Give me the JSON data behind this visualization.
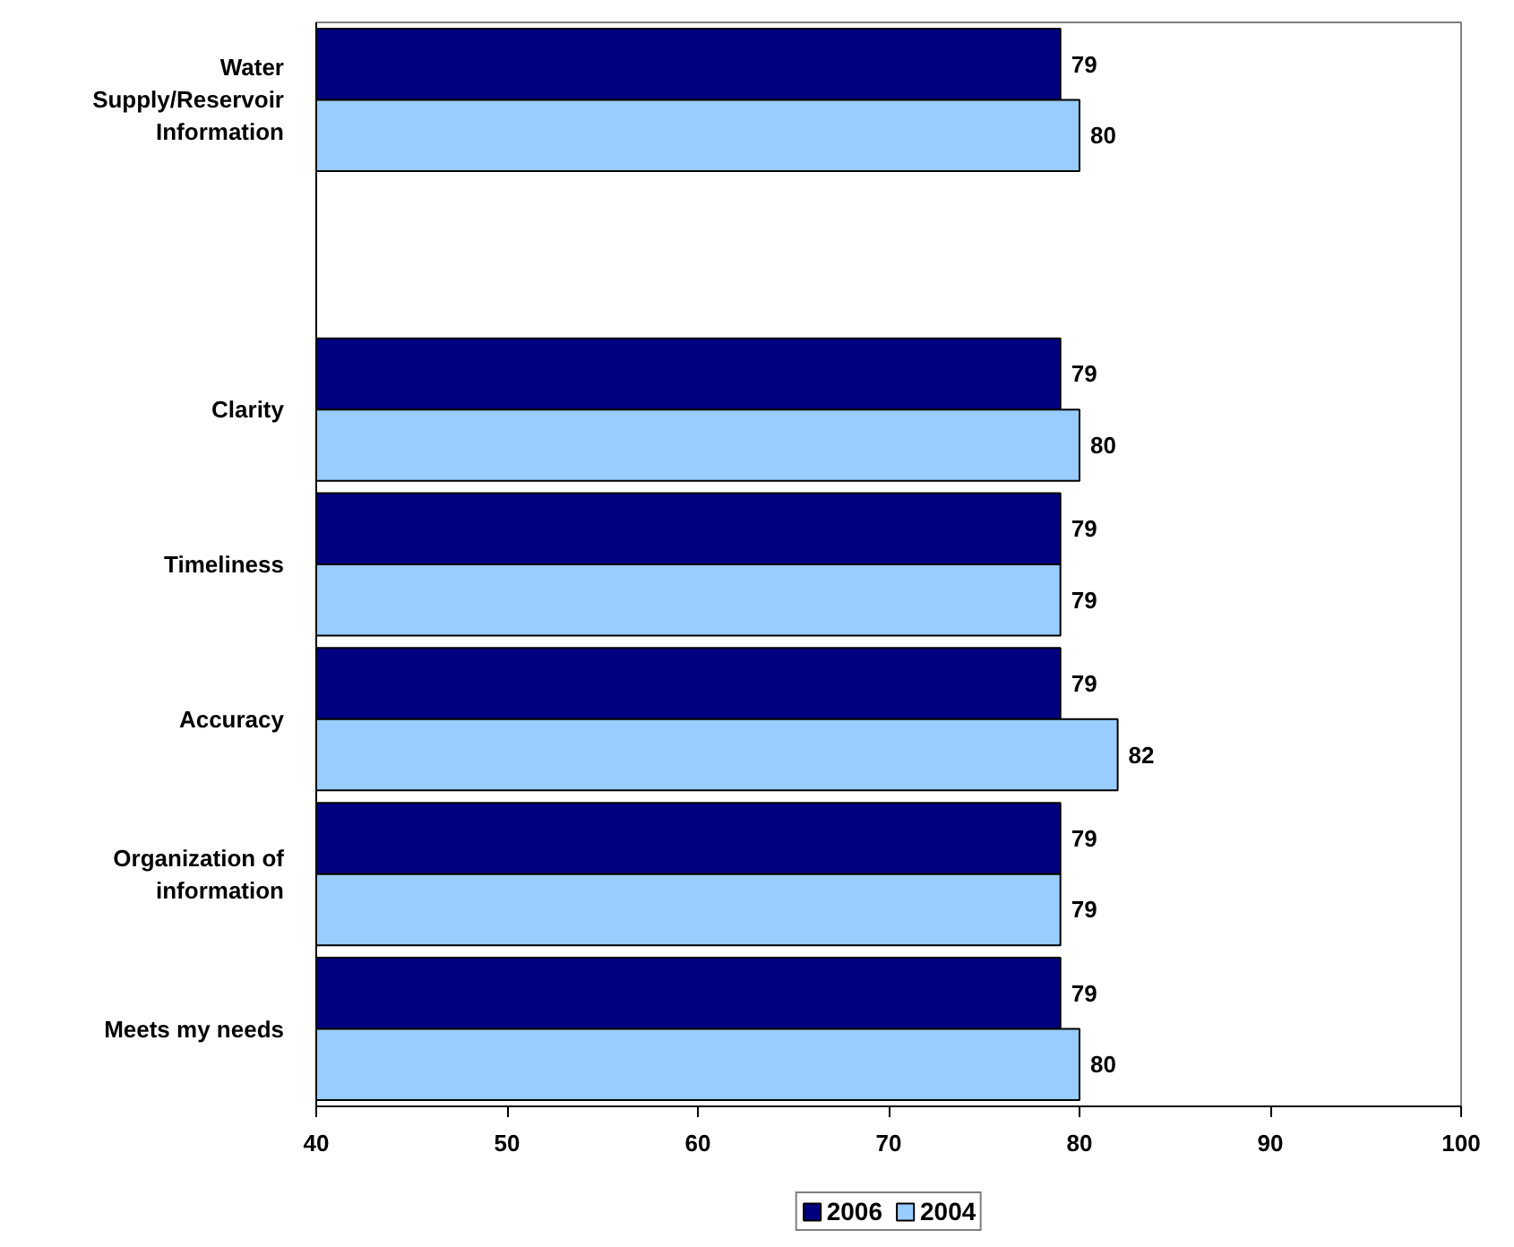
{
  "chart_data": {
    "type": "bar",
    "orientation": "horizontal",
    "categories": [
      "Water Supply/Reservoir Information",
      null,
      "Clarity",
      "Timeliness",
      "Accuracy",
      "Organization of information",
      "Meets my needs"
    ],
    "series": [
      {
        "name": "2006",
        "color": "#000080",
        "values": [
          79,
          null,
          79,
          79,
          79,
          79,
          79
        ]
      },
      {
        "name": "2004",
        "color": "#99ccff",
        "values": [
          80,
          null,
          80,
          79,
          82,
          79,
          80
        ]
      }
    ],
    "xlim": [
      40,
      100
    ],
    "xticks": [
      40,
      50,
      60,
      70,
      80,
      90,
      100
    ],
    "data_labels": true,
    "legend": "bottom"
  }
}
